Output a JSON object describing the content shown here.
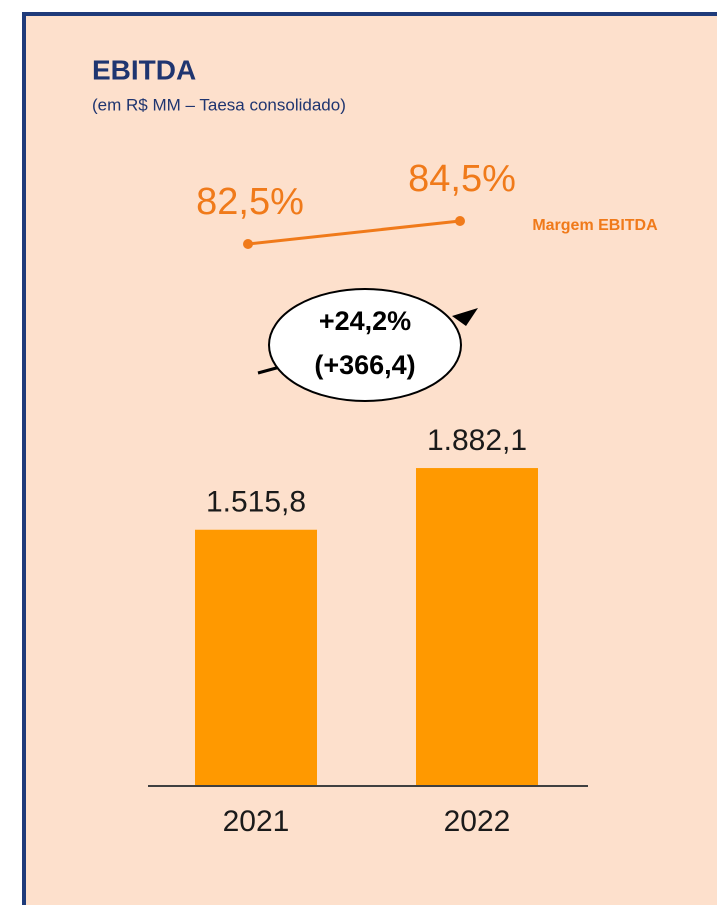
{
  "chart_data": {
    "type": "bar",
    "title": "EBITDA",
    "subtitle": "(em R$ MM – Taesa consolidado)",
    "categories": [
      "2021",
      "2022"
    ],
    "values": [
      1515.8,
      1882.1
    ],
    "value_labels": [
      "1.515,8",
      "1.882,1"
    ],
    "color": "#ff9900",
    "line": {
      "name": "Margem EBITDA",
      "values": [
        82.5,
        84.5
      ],
      "value_labels": [
        "82,5%",
        "84,5%"
      ],
      "color": "#f07a1a"
    },
    "annotation": [
      "+24,2%",
      "(+366,4)"
    ]
  }
}
